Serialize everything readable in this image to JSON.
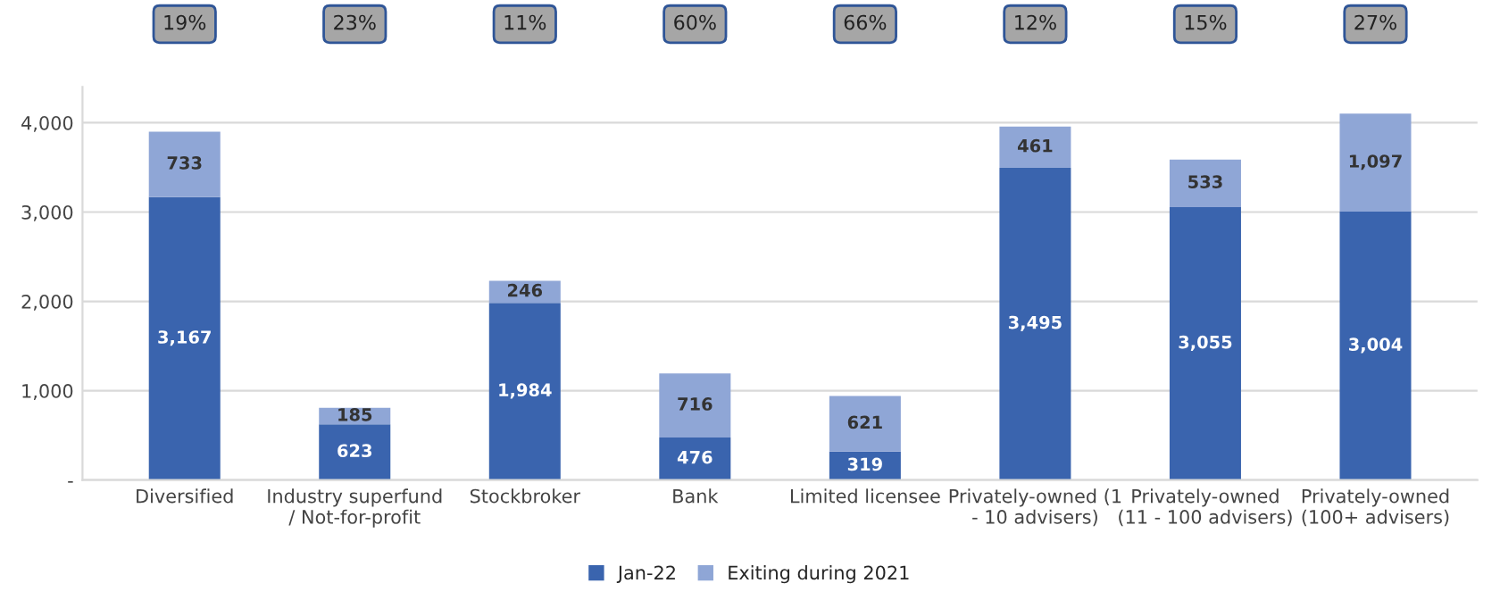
{
  "chart_data": {
    "type": "bar",
    "stacked": true,
    "categories": [
      "Diversified",
      "Industry superfund\n/ Not-for-profit",
      "Stockbroker",
      "Bank",
      "Limited licensee",
      "Privately-owned (1\n- 10 advisers)",
      "Privately-owned\n(11 - 100 advisers)",
      "Privately-owned\n(100+ advisers)"
    ],
    "series": [
      {
        "name": "Jan-22",
        "color": "#3a64ae",
        "values": [
          3167,
          623,
          1984,
          476,
          319,
          3495,
          3055,
          3004
        ],
        "value_labels": [
          "3,167",
          "623",
          "1,984",
          "476",
          "319",
          "3,495",
          "3,055",
          "3,004"
        ]
      },
      {
        "name": "Exiting during 2021",
        "color": "#8fa6d6",
        "values": [
          733,
          185,
          246,
          716,
          621,
          461,
          533,
          1097
        ],
        "value_labels": [
          "733",
          "185",
          "246",
          "716",
          "621",
          "461",
          "533",
          "1,097"
        ]
      }
    ],
    "ylim": [
      0,
      4400
    ],
    "yticks": [
      {
        "value": 0,
        "label": "-"
      },
      {
        "value": 1000,
        "label": "1,000"
      },
      {
        "value": 2000,
        "label": "2,000"
      },
      {
        "value": 3000,
        "label": "3,000"
      },
      {
        "value": 4000,
        "label": "4,000"
      }
    ],
    "annotations": [
      "19%",
      "23%",
      "11%",
      "60%",
      "66%",
      "12%",
      "15%",
      "27%"
    ],
    "grid": "y",
    "legend": "bottom"
  }
}
